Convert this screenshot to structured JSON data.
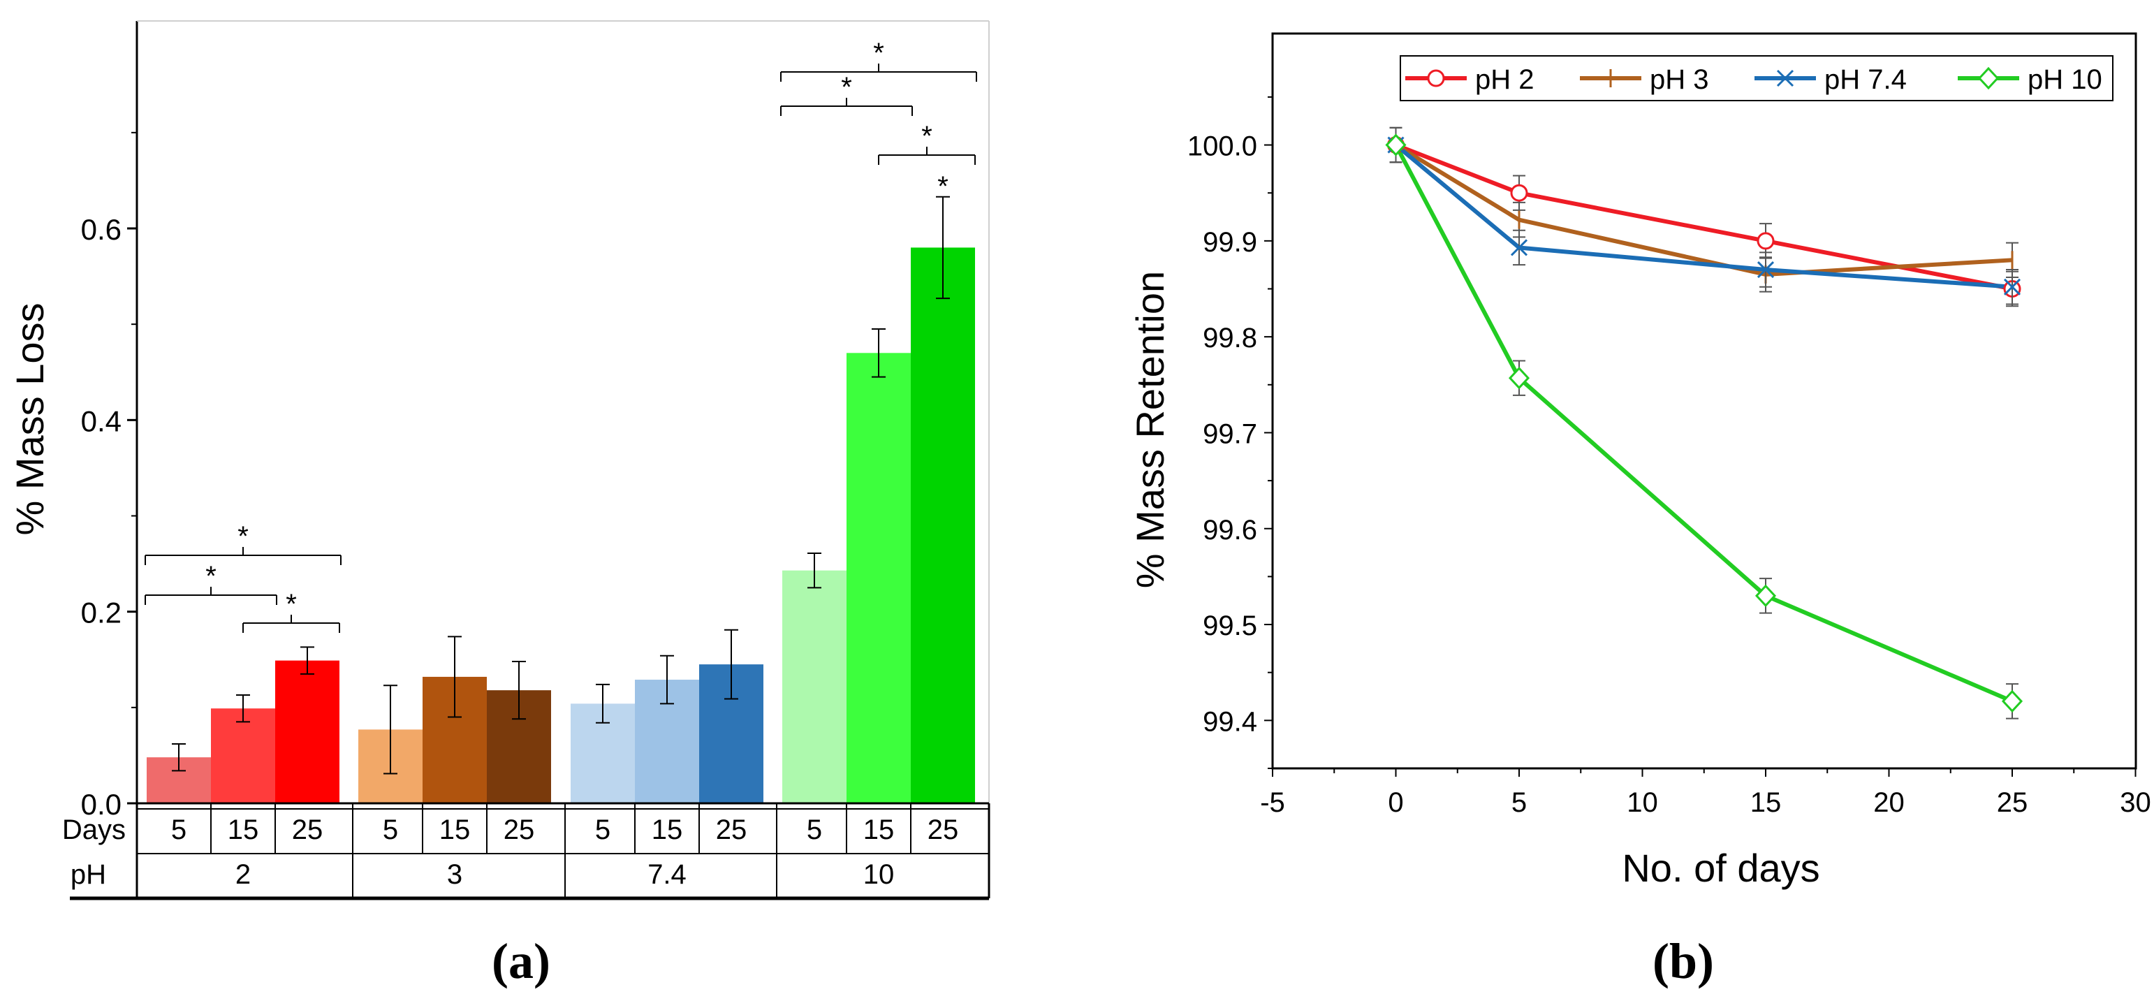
{
  "chart_data": [
    {
      "panel": "(a)",
      "type": "bar",
      "ylabel": "% Mass Loss",
      "ylim": [
        0,
        0.8
      ],
      "yticks": [
        0.0,
        0.2,
        0.4,
        0.6
      ],
      "ytick_labels": [
        "0.0",
        "0.2",
        "0.4",
        "0.6"
      ],
      "row_labels": {
        "days": "Days",
        "ph": "pH"
      },
      "groups": [
        {
          "ph": "2",
          "days": [
            "5",
            "15",
            "25"
          ],
          "values": [
            0.048,
            0.099,
            0.149
          ],
          "errors": [
            0.014,
            0.014,
            0.014
          ],
          "colors": [
            "#ef6b6b",
            "#ff3c3c",
            "#ff0000"
          ]
        },
        {
          "ph": "3",
          "days": [
            "5",
            "15",
            "25"
          ],
          "values": [
            0.077,
            0.132,
            0.118
          ],
          "errors": [
            0.046,
            0.042,
            0.03
          ],
          "colors": [
            "#f2a868",
            "#b0540e",
            "#7a3a0c"
          ]
        },
        {
          "ph": "7.4",
          "days": [
            "5",
            "15",
            "25"
          ],
          "values": [
            0.104,
            0.129,
            0.145
          ],
          "errors": [
            0.02,
            0.025,
            0.036
          ],
          "colors": [
            "#bcd6ee",
            "#9dc2e6",
            "#2e75b6"
          ]
        },
        {
          "ph": "10",
          "days": [
            "5",
            "15",
            "25"
          ],
          "values": [
            0.243,
            0.47,
            0.58
          ],
          "errors": [
            0.018,
            0.025,
            0.053
          ],
          "colors": [
            "#adf9ad",
            "#3dff3d",
            "#00d400"
          ]
        }
      ],
      "significance": [
        {
          "group": 0,
          "from": 0,
          "to": 1,
          "label": "*"
        },
        {
          "group": 0,
          "from": 1,
          "to": 2,
          "label": "*"
        },
        {
          "group": 0,
          "from": 0,
          "to": 2,
          "label": "*"
        },
        {
          "group": 3,
          "from": 1,
          "to": 2,
          "label": "*"
        },
        {
          "group": 3,
          "from": 0,
          "to": 1,
          "label": "*"
        },
        {
          "group": 3,
          "from": 0,
          "to": 2,
          "label": "*"
        }
      ],
      "single_markers": [
        {
          "group": 3,
          "bar": 2,
          "label": "*"
        }
      ]
    },
    {
      "panel": "(b)",
      "type": "line",
      "xlabel": "No. of days",
      "ylabel": "% Mass Retention",
      "xlim": [
        -5,
        30
      ],
      "ylim": [
        99.35,
        100.1
      ],
      "xticks": [
        -5,
        0,
        5,
        10,
        15,
        20,
        25,
        30
      ],
      "xtick_labels": [
        "-5",
        "0",
        "5",
        "10",
        "15",
        "20",
        "25",
        "30"
      ],
      "yticks": [
        99.4,
        99.5,
        99.6,
        99.7,
        99.8,
        99.9,
        100.0
      ],
      "ytick_labels": [
        "99.4",
        "99.5",
        "99.6",
        "99.7",
        "99.8",
        "99.9",
        "100.0"
      ],
      "x": [
        0,
        5,
        15,
        25
      ],
      "series": [
        {
          "name": "pH 2",
          "values": [
            100.0,
            99.95,
            99.9,
            99.85
          ],
          "errors": [
            0.018,
            0.018,
            0.018,
            0.018
          ],
          "color": "#ee1c25",
          "marker": "circle"
        },
        {
          "name": "pH 3",
          "values": [
            100.0,
            99.922,
            99.865,
            99.88
          ],
          "errors": [
            0.018,
            0.018,
            0.018,
            0.018
          ],
          "color": "#b0611e",
          "marker": "vbar"
        },
        {
          "name": "pH 7.4",
          "values": [
            100.0,
            99.893,
            99.87,
            99.852
          ],
          "errors": [
            0.018,
            0.018,
            0.018,
            0.018
          ],
          "color": "#1b6db5",
          "marker": "x"
        },
        {
          "name": "pH 10",
          "values": [
            100.0,
            99.757,
            99.53,
            99.42
          ],
          "errors": [
            0.018,
            0.018,
            0.018,
            0.018
          ],
          "color": "#22cc22",
          "marker": "diamond"
        }
      ]
    }
  ]
}
